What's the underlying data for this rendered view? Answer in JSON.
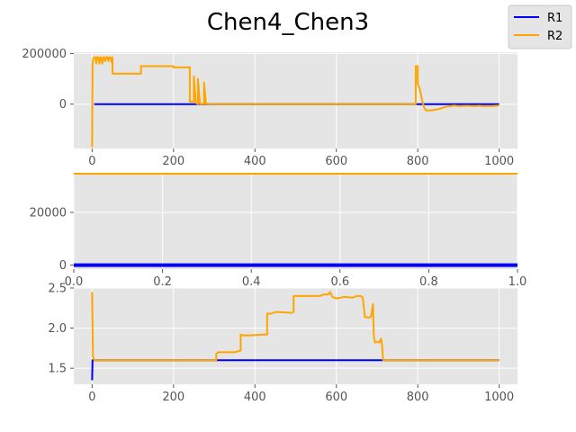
{
  "chart_data": [
    {
      "type": "line",
      "title": "Chen4_Chen3",
      "xlim": [
        -45,
        1045
      ],
      "ylim": [
        -175000,
        205000
      ],
      "xticks": [
        0,
        200,
        400,
        600,
        800,
        1000
      ],
      "yticks": [
        0,
        200000
      ],
      "xtick_labels": [
        "0",
        "200",
        "400",
        "600",
        "800",
        "1000"
      ],
      "ytick_labels": [
        "0",
        "200000"
      ],
      "grid": true,
      "series": [
        {
          "name": "R1",
          "color": "#0000ff",
          "x": [
            5,
            1000
          ],
          "y": [
            0,
            0
          ]
        },
        {
          "name": "R2",
          "color": "#ffa500",
          "x": [
            0,
            1,
            2,
            3,
            5,
            8,
            10,
            12,
            15,
            18,
            20,
            22,
            25,
            28,
            30,
            32,
            35,
            38,
            40,
            42,
            45,
            48,
            50,
            50,
            120,
            120,
            200,
            200,
            240,
            240,
            250,
            250,
            255,
            255,
            260,
            260,
            265,
            265,
            270,
            270,
            275,
            275,
            280,
            280,
            285,
            285,
            290,
            290,
            295,
            295,
            300,
            795,
            795,
            800,
            800,
            805,
            810,
            815,
            820,
            825,
            830,
            850,
            860,
            870,
            880,
            890,
            900,
            920,
            940,
            950,
            960,
            980,
            1000
          ],
          "y": [
            -170000,
            150000,
            175000,
            180000,
            185000,
            185000,
            160000,
            185000,
            185000,
            160000,
            185000,
            185000,
            160000,
            185000,
            185000,
            170000,
            185000,
            185000,
            170000,
            185000,
            185000,
            165000,
            185000,
            120000,
            120000,
            150000,
            150000,
            145000,
            145000,
            10000,
            10000,
            110000,
            5000,
            5000,
            0,
            100000,
            0,
            0,
            2000,
            2000,
            0,
            85000,
            0,
            0,
            1000,
            1000,
            0,
            0,
            0,
            0,
            0,
            0,
            150000,
            150000,
            80000,
            60000,
            20000,
            -10000,
            -25000,
            -25000,
            -25000,
            -20000,
            -15000,
            -10000,
            -8000,
            -5000,
            -8000,
            -6000,
            -8000,
            -6000,
            -8000,
            -8000,
            -5000
          ]
        }
      ]
    },
    {
      "type": "line",
      "xlim": [
        0,
        1
      ],
      "ylim": [
        -1500,
        35000
      ],
      "xticks": [
        0.0,
        0.2,
        0.4,
        0.6,
        0.8,
        1.0
      ],
      "yticks": [
        0,
        20000
      ],
      "xtick_labels": [
        "0.0",
        "0.2",
        "0.4",
        "0.6",
        "0.8",
        "1.0"
      ],
      "ytick_labels": [
        "0",
        "20000"
      ],
      "grid": true,
      "series": [
        {
          "name": "R1",
          "color": "#0000ff",
          "x": [
            0,
            1
          ],
          "y": [
            0,
            0
          ]
        },
        {
          "name": "R2",
          "color": "#ffa500",
          "x": [
            0,
            1
          ],
          "y": [
            35000,
            35000
          ]
        }
      ]
    },
    {
      "type": "line",
      "xlim": [
        -45,
        1045
      ],
      "ylim": [
        1.3,
        2.5
      ],
      "xticks": [
        0,
        200,
        400,
        600,
        800,
        1000
      ],
      "yticks": [
        1.5,
        2.0,
        2.5
      ],
      "xtick_labels": [
        "0",
        "200",
        "400",
        "600",
        "800",
        "1000"
      ],
      "ytick_labels": [
        "1.5",
        "2.0",
        "2.5"
      ],
      "grid": true,
      "series": [
        {
          "name": "R1",
          "color": "#0000ff",
          "x": [
            0,
            1,
            2,
            5,
            1000
          ],
          "y": [
            1.35,
            1.6,
            1.6,
            1.6,
            1.6
          ]
        },
        {
          "name": "R2",
          "color": "#ffa500",
          "x": [
            0,
            2,
            5,
            10,
            305,
            305,
            310,
            330,
            350,
            365,
            365,
            370,
            390,
            420,
            430,
            430,
            440,
            450,
            460,
            490,
            495,
            495,
            510,
            560,
            570,
            580,
            585,
            590,
            600,
            620,
            640,
            650,
            660,
            665,
            670,
            680,
            685,
            690,
            692,
            695,
            700,
            705,
            710,
            712,
            715,
            1000
          ],
          "y": [
            2.45,
            1.65,
            1.6,
            1.6,
            1.6,
            1.68,
            1.7,
            1.7,
            1.7,
            1.72,
            1.92,
            1.91,
            1.91,
            1.92,
            1.92,
            2.18,
            2.18,
            2.2,
            2.2,
            2.19,
            2.2,
            2.4,
            2.4,
            2.4,
            2.42,
            2.42,
            2.45,
            2.39,
            2.37,
            2.39,
            2.38,
            2.4,
            2.4,
            2.38,
            2.14,
            2.13,
            2.14,
            2.3,
            1.9,
            1.82,
            1.83,
            1.82,
            1.87,
            1.8,
            1.6,
            1.6
          ]
        }
      ]
    }
  ],
  "legend": {
    "placement": "top-right",
    "entries": [
      {
        "label": "R1",
        "color": "#0000ff"
      },
      {
        "label": "R2",
        "color": "#ffa500"
      }
    ]
  }
}
